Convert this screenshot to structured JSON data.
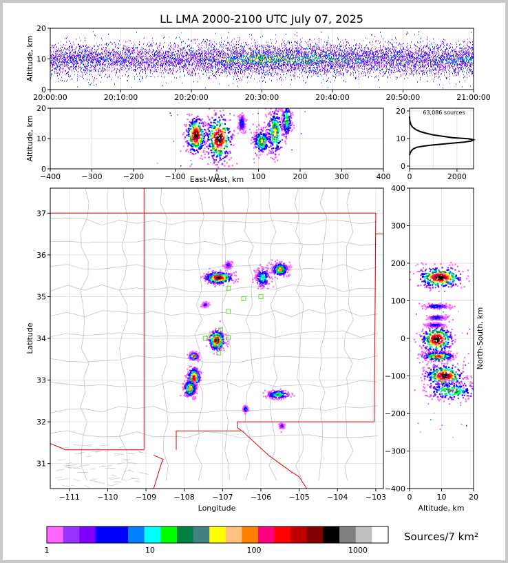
{
  "title": "LL LMA 2000-2100 UTC July 07, 2025",
  "panels": {
    "time_height": {
      "ylabel": "Altitude, km",
      "xticks": [
        "20:00:00",
        "20:10:00",
        "20:20:00",
        "20:30:00",
        "20:40:00",
        "20:50:00",
        "21:00:00"
      ],
      "yticks": [
        "0",
        "10",
        "20"
      ]
    },
    "ew_height": {
      "xlabel": "East-West, km",
      "ylabel": "Altitude, km",
      "xticks": [
        "−400",
        "−300",
        "−200",
        "−100",
        "0",
        "100",
        "200",
        "300",
        "400"
      ],
      "yticks": [
        "0",
        "10",
        "20"
      ]
    },
    "histogram": {
      "annotation": "63,086 sources",
      "xticks": [
        "0",
        "2000"
      ],
      "yticks": [
        "0",
        "10",
        "20"
      ]
    },
    "plan": {
      "xlabel": "Longitude",
      "ylabel": "Latitude",
      "xticks": [
        "−111",
        "−110",
        "−109",
        "−108",
        "−107",
        "−106",
        "−105",
        "−104",
        "−103"
      ],
      "yticks": [
        "31",
        "32",
        "33",
        "34",
        "35",
        "36",
        "37"
      ]
    },
    "ns_height": {
      "xlabel": "Altitude, km",
      "ylabel": "North-South, km",
      "xticks": [
        "0",
        "10",
        "20"
      ],
      "yticks": [
        "400",
        "300",
        "200",
        "100",
        "0",
        "−100",
        "−200",
        "−300",
        "−400"
      ]
    }
  },
  "colorbar": {
    "label": "Sources/7 km²",
    "ticks": [
      "1",
      "10",
      "100",
      "1000"
    ],
    "colors": [
      "#ff66ff",
      "#9933ff",
      "#8000ff",
      "#0000ff",
      "#0000ff",
      "#0080ff",
      "#00ffff",
      "#00ff00",
      "#008040",
      "#408080",
      "#ffff00",
      "#ffc080",
      "#ff8000",
      "#ff0080",
      "#ff0000",
      "#c00000",
      "#800000",
      "#000000",
      "#808080",
      "#c0c0c0",
      "#ffffff"
    ]
  },
  "chart_data": [
    {
      "type": "scatter",
      "name": "time_height",
      "xlim": [
        "20:00:00",
        "21:00:00"
      ],
      "ylim": [
        0,
        20
      ],
      "ylabel": "Altitude, km",
      "activity_by_minute": [
        0.45,
        0.5,
        0.55,
        0.55,
        0.6,
        0.55,
        0.5,
        0.45,
        0.4,
        0.4,
        0.45,
        0.45,
        0.4,
        0.35,
        0.35,
        0.4,
        0.45,
        0.45,
        0.5,
        0.5,
        0.55,
        0.55,
        0.6,
        0.6,
        0.7,
        0.8,
        0.85,
        0.9,
        0.95,
        1.0,
        1.0,
        0.95,
        0.9,
        0.9,
        0.85,
        0.85,
        0.9,
        0.85,
        0.8,
        0.8,
        0.75,
        0.75,
        0.7,
        0.7,
        0.65,
        0.6,
        0.6,
        0.55,
        0.55,
        0.5,
        0.55,
        0.55,
        0.6,
        0.6,
        0.65,
        0.65,
        0.7,
        0.75,
        0.8,
        0.8
      ],
      "typical_altitude_km": [
        5,
        15
      ]
    },
    {
      "type": "scatter",
      "name": "ew_height",
      "xlim": [
        -400,
        400
      ],
      "ylim": [
        0,
        20
      ],
      "xlabel": "East-West, km",
      "ylabel": "Altitude, km",
      "clusters": [
        {
          "x": -50,
          "y": 11,
          "sx": 12,
          "sy": 3,
          "peak": 1.0
        },
        {
          "x": 5,
          "y": 10,
          "sx": 16,
          "sy": 4,
          "peak": 1.0
        },
        {
          "x": 60,
          "y": 15,
          "sx": 4,
          "sy": 1.5,
          "peak": 0.3
        },
        {
          "x": 108,
          "y": 9,
          "sx": 10,
          "sy": 2,
          "peak": 0.6
        },
        {
          "x": 140,
          "y": 12,
          "sx": 10,
          "sy": 4,
          "peak": 0.6
        },
        {
          "x": 168,
          "y": 16,
          "sx": 6,
          "sy": 3,
          "peak": 0.45
        }
      ]
    },
    {
      "type": "line",
      "name": "altitude_histogram",
      "annotation": "63,086 sources",
      "xlim": [
        0,
        2700
      ],
      "ylim": [
        0,
        20
      ],
      "x": [
        0,
        30,
        80,
        150,
        300,
        550,
        900,
        1300,
        1800,
        2300,
        2600,
        2700,
        2500,
        1800,
        1400,
        1000,
        700,
        450,
        250,
        120,
        60,
        30,
        10,
        0
      ],
      "y": [
        4,
        4.8,
        5.6,
        6.2,
        6.8,
        7.2,
        7.6,
        7.9,
        8.3,
        8.7,
        9.1,
        9.5,
        9.9,
        10.3,
        10.8,
        11.3,
        11.9,
        12.5,
        13.3,
        14.2,
        15.0,
        15.8,
        16.6,
        18
      ]
    },
    {
      "type": "scatter",
      "name": "plan_view",
      "xlabel": "Longitude",
      "ylabel": "Latitude",
      "xlim": [
        -111.5,
        -102.8
      ],
      "ylim": [
        30.4,
        37.6
      ],
      "clusters": [
        {
          "lon": -107.1,
          "lat": 35.45,
          "slon": 0.18,
          "slat": 0.07,
          "peak": 1.0
        },
        {
          "lon": -107.15,
          "lat": 33.95,
          "slon": 0.1,
          "slat": 0.12,
          "peak": 1.0
        },
        {
          "lon": -107.75,
          "lat": 33.05,
          "slon": 0.08,
          "slat": 0.12,
          "peak": 0.9
        },
        {
          "lon": -107.85,
          "lat": 32.8,
          "slon": 0.08,
          "slat": 0.1,
          "peak": 0.7
        },
        {
          "lon": -107.75,
          "lat": 33.57,
          "slon": 0.06,
          "slat": 0.04,
          "peak": 0.8
        },
        {
          "lon": -105.5,
          "lat": 35.65,
          "slon": 0.1,
          "slat": 0.08,
          "peak": 0.7
        },
        {
          "lon": -105.95,
          "lat": 35.45,
          "slon": 0.1,
          "slat": 0.12,
          "peak": 0.4
        },
        {
          "lon": -105.55,
          "lat": 32.65,
          "slon": 0.15,
          "slat": 0.05,
          "peak": 0.5
        },
        {
          "lon": -106.4,
          "lat": 32.3,
          "slon": 0.03,
          "slat": 0.04,
          "peak": 0.3
        },
        {
          "lon": -105.45,
          "lat": 31.9,
          "slon": 0.03,
          "slat": 0.03,
          "peak": 0.25
        },
        {
          "lon": -106.85,
          "lat": 35.75,
          "slon": 0.05,
          "slat": 0.04,
          "peak": 0.2
        },
        {
          "lon": -107.45,
          "lat": 34.8,
          "slon": 0.04,
          "slat": 0.03,
          "peak": 0.2
        }
      ],
      "stations": [
        [
          -106.85,
          35.2
        ],
        [
          -106.45,
          34.95
        ],
        [
          -106.0,
          35.0
        ],
        [
          -106.85,
          34.65
        ],
        [
          -107.05,
          34.2
        ],
        [
          -107.3,
          34.05
        ],
        [
          -107.2,
          33.95
        ],
        [
          -107.05,
          33.82
        ],
        [
          -107.1,
          33.65
        ],
        [
          -106.85,
          34.02
        ],
        [
          -107.45,
          34.0
        ]
      ]
    },
    {
      "type": "scatter",
      "name": "ns_height",
      "xlim": [
        0,
        20
      ],
      "ylim": [
        -400,
        400
      ],
      "xlabel": "Altitude, km",
      "ylabel": "North-South, km",
      "clusters": [
        {
          "alt": 9.5,
          "ns": 162,
          "salt": 3.5,
          "sns": 14,
          "peak": 1.0
        },
        {
          "alt": 8.5,
          "ns": -3,
          "salt": 2.5,
          "sns": 18,
          "peak": 1.0
        },
        {
          "alt": 9,
          "ns": -48,
          "salt": 2.5,
          "sns": 6,
          "peak": 0.8
        },
        {
          "alt": 11,
          "ns": -100,
          "salt": 3,
          "sns": 14,
          "peak": 1.0
        },
        {
          "alt": 13,
          "ns": -140,
          "salt": 4,
          "sns": 12,
          "peak": 0.55
        },
        {
          "alt": 8.5,
          "ns": 85,
          "salt": 2,
          "sns": 3,
          "peak": 0.3
        },
        {
          "alt": 8.5,
          "ns": 55,
          "salt": 1.5,
          "sns": 3,
          "peak": 0.25
        },
        {
          "alt": 8,
          "ns": 35,
          "salt": 1.5,
          "sns": 3,
          "peak": 0.25
        }
      ]
    }
  ]
}
